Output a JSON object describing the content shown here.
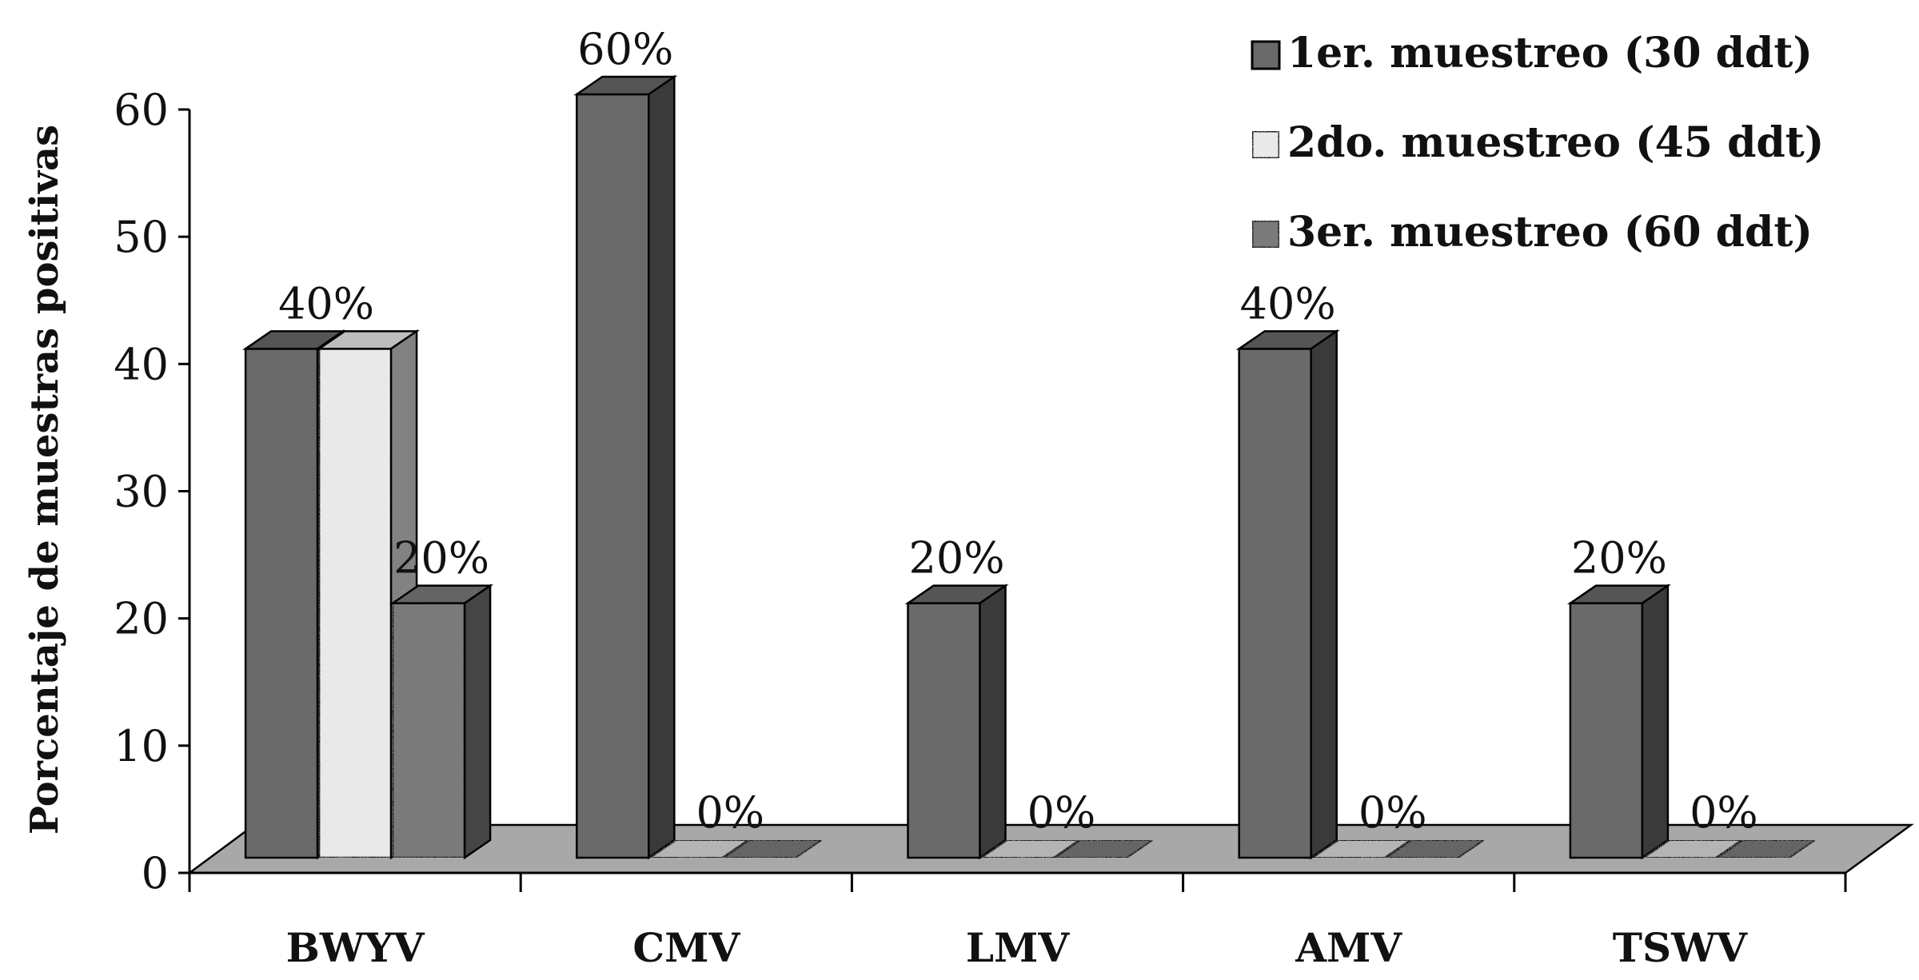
{
  "chart_data": {
    "type": "bar",
    "style": "3d-clustered",
    "ylabel": "Porcentaje de muestras positivas",
    "xlabel": "",
    "ylim": [
      0,
      60
    ],
    "yticks": [
      0,
      10,
      20,
      30,
      40,
      50,
      60
    ],
    "categories": [
      "BWYV",
      "CMV",
      "LMV",
      "AMV",
      "TSWV"
    ],
    "series": [
      {
        "name": "1er. muestreo (30 ddt)",
        "values": [
          40,
          60,
          20,
          40,
          20
        ],
        "color": "#6a6a6a",
        "pattern": "solid"
      },
      {
        "name": "2do. muestreo (45 ddt)",
        "values": [
          40,
          0,
          0,
          0,
          0
        ],
        "color": "#ececec",
        "pattern": "light-speckle"
      },
      {
        "name": "3er. muestreo (60 ddt)",
        "values": [
          20,
          0,
          0,
          0,
          0
        ],
        "color": "#7d7d7d",
        "pattern": "dark-speckle"
      }
    ],
    "data_labels": [
      {
        "category": "BWYV",
        "text": "40%"
      },
      {
        "category": "BWYV",
        "text": "20%"
      },
      {
        "category": "CMV",
        "text": "60%"
      },
      {
        "category": "CMV",
        "text": "0%"
      },
      {
        "category": "LMV",
        "text": "20%"
      },
      {
        "category": "LMV",
        "text": "0%"
      },
      {
        "category": "AMV",
        "text": "40%"
      },
      {
        "category": "AMV",
        "text": "0%"
      },
      {
        "category": "TSWV",
        "text": "20%"
      },
      {
        "category": "TSWV",
        "text": "0%"
      }
    ],
    "grid": false,
    "legend_position": "top-right",
    "floor_color": "#a8a8a8"
  }
}
